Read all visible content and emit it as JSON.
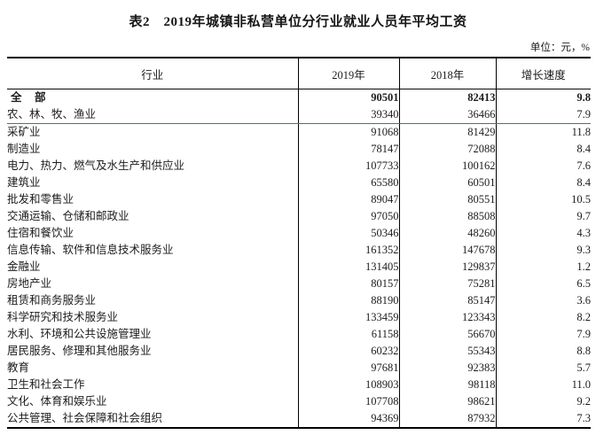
{
  "page": {
    "title": "表2　2019年城镇非私营单位分行业就业人员年平均工资",
    "unit_note": "单位：元，%"
  },
  "table": {
    "columns": [
      {
        "key": "industry",
        "label": "行业"
      },
      {
        "key": "y2019",
        "label": "2019年"
      },
      {
        "key": "y2018",
        "label": "2018年"
      },
      {
        "key": "growth",
        "label": "增长速度"
      }
    ],
    "colors": {
      "divider_green": "#2f8f2f",
      "border_black": "#000000"
    },
    "rows": [
      {
        "industry": "全　部",
        "y2019": "90501",
        "y2018": "82413",
        "growth": "9.8",
        "bold": true,
        "indent": false
      },
      {
        "industry": "农、林、牧、渔业",
        "y2019": "39340",
        "y2018": "36466",
        "growth": "7.9",
        "divider_after": true
      },
      {
        "industry": "采矿业",
        "y2019": "91068",
        "y2018": "81429",
        "growth": "11.8"
      },
      {
        "industry": "制造业",
        "y2019": "78147",
        "y2018": "72088",
        "growth": "8.4"
      },
      {
        "industry": "电力、热力、燃气及水生产和供应业",
        "y2019": "107733",
        "y2018": "100162",
        "growth": "7.6"
      },
      {
        "industry": "建筑业",
        "y2019": "65580",
        "y2018": "60501",
        "growth": "8.4"
      },
      {
        "industry": "批发和零售业",
        "y2019": "89047",
        "y2018": "80551",
        "growth": "10.5"
      },
      {
        "industry": "交通运输、仓储和邮政业",
        "y2019": "97050",
        "y2018": "88508",
        "growth": "9.7"
      },
      {
        "industry": "住宿和餐饮业",
        "y2019": "50346",
        "y2018": "48260",
        "growth": "4.3"
      },
      {
        "industry": "信息传输、软件和信息技术服务业",
        "y2019": "161352",
        "y2018": "147678",
        "growth": "9.3"
      },
      {
        "industry": "金融业",
        "y2019": "131405",
        "y2018": "129837",
        "growth": "1.2"
      },
      {
        "industry": "房地产业",
        "y2019": "80157",
        "y2018": "75281",
        "growth": "6.5"
      },
      {
        "industry": "租赁和商务服务业",
        "y2019": "88190",
        "y2018": "85147",
        "growth": "3.6"
      },
      {
        "industry": "科学研究和技术服务业",
        "y2019": "133459",
        "y2018": "123343",
        "growth": "8.2"
      },
      {
        "industry": "水利、环境和公共设施管理业",
        "y2019": "61158",
        "y2018": "56670",
        "growth": "7.9"
      },
      {
        "industry": "居民服务、修理和其他服务业",
        "y2019": "60232",
        "y2018": "55343",
        "growth": "8.8"
      },
      {
        "industry": "教育",
        "y2019": "97681",
        "y2018": "92383",
        "growth": "5.7"
      },
      {
        "industry": "卫生和社会工作",
        "y2019": "108903",
        "y2018": "98118",
        "growth": "11.0"
      },
      {
        "industry": "文化、体育和娱乐业",
        "y2019": "107708",
        "y2018": "98621",
        "growth": "9.2"
      },
      {
        "industry": "公共管理、社会保障和社会组织",
        "y2019": "94369",
        "y2018": "87932",
        "growth": "7.3"
      }
    ]
  }
}
